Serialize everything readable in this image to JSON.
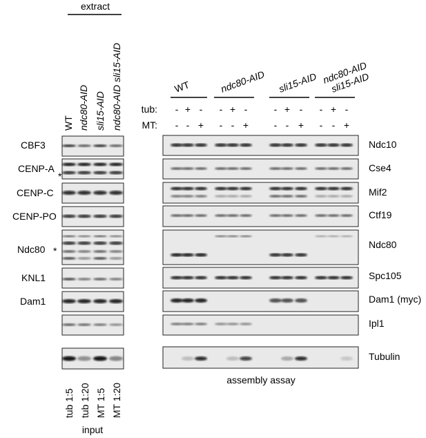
{
  "extract_header": "extract",
  "extract_lanes": [
    "WT",
    "ndc80-AID",
    "sli15-AID",
    "ndc80-AID sli15-AID"
  ],
  "input_lanes": [
    "tub 1:5",
    "tub 1:20",
    "MT 1:5",
    "MT 1:20"
  ],
  "input_label": "input",
  "assay_label": "assembly assay",
  "groups": [
    "WT",
    "ndc80-AID",
    "sli15-AID",
    "ndc80-AID",
    "sli15-AID"
  ],
  "row_tub_label": "tub:",
  "row_mt_label": "MT:",
  "tub_signs": [
    "-",
    "+",
    "-",
    "-",
    "+",
    "-",
    "-",
    "+",
    "-",
    "-",
    "+",
    "-"
  ],
  "mt_signs": [
    "-",
    "-",
    "+",
    "-",
    "-",
    "+",
    "-",
    "-",
    "+",
    "-",
    "-",
    "+"
  ],
  "asterisk": "*",
  "left_labels": [
    {
      "text": "CBF3",
      "color": "#2aa84a"
    },
    {
      "text": "CENP-A",
      "color": "#3a9ad9"
    },
    {
      "text": "CENP-C",
      "color": "#8b4513"
    },
    {
      "text": "CENP-PO",
      "color": "#c040b0"
    },
    {
      "text": "Ndc80",
      "color": "#e08a1e"
    },
    {
      "text": "KNL1",
      "color": "#d42020"
    },
    {
      "text": "Dam1",
      "color": "#1a7a2a"
    }
  ],
  "right_labels": [
    "Ndc10",
    "Cse4",
    "Mif2",
    "Ctf19",
    "Ndc80",
    "Spc105",
    "Dam1 (myc)",
    "Ipl1",
    "Tubulin"
  ]
}
